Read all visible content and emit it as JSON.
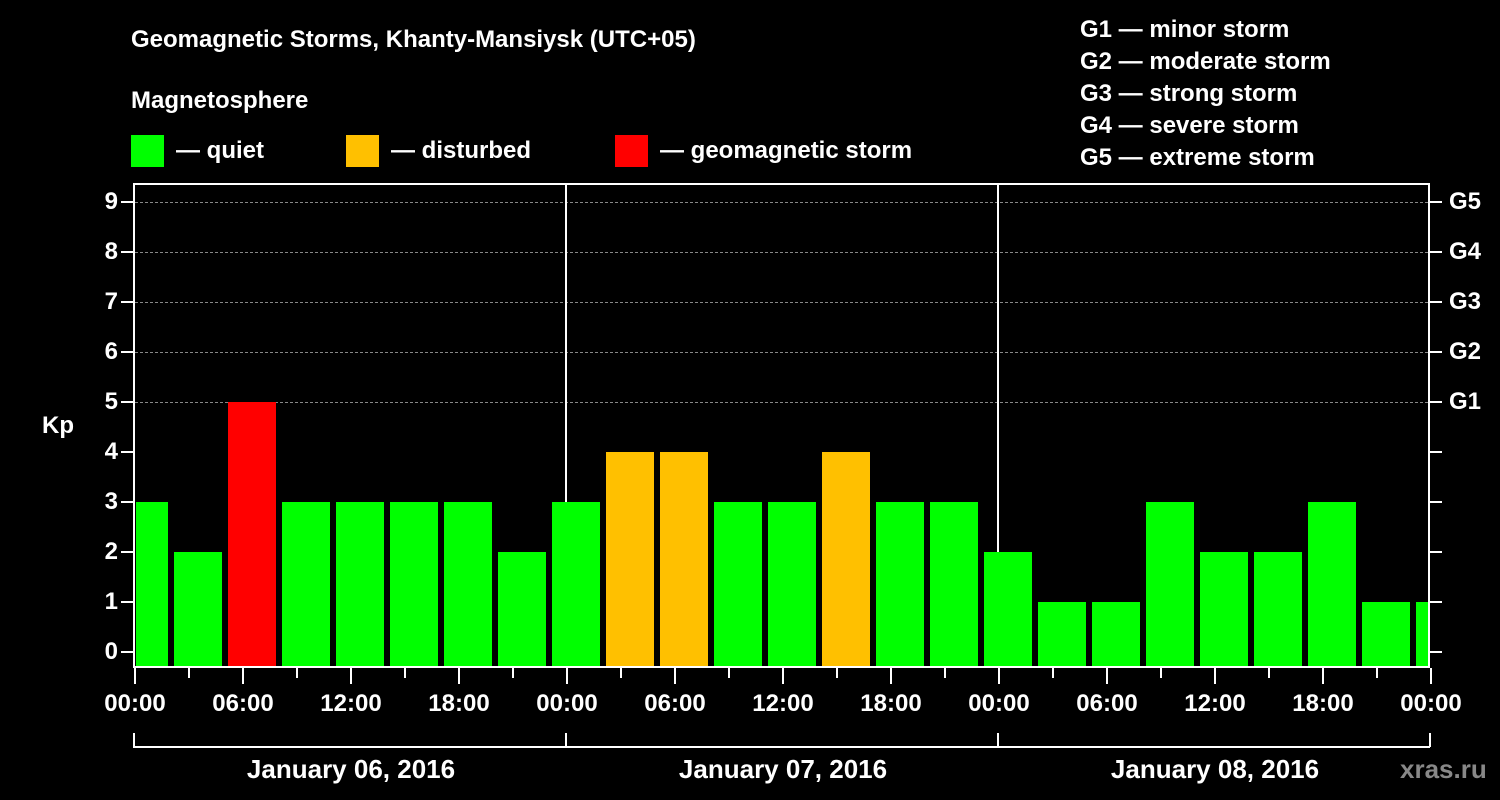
{
  "header": {
    "title": "Geomagnetic Storms, Khanty-Mansiysk (UTC+05)",
    "subtitle": "Magnetosphere"
  },
  "legend": [
    {
      "label": "— quiet",
      "color": "#00ff00"
    },
    {
      "label": "— disturbed",
      "color": "#ffc000"
    },
    {
      "label": "— geomagnetic storm",
      "color": "#ff0000"
    }
  ],
  "g_legend": [
    "G1 — minor storm",
    "G2 — moderate storm",
    "G3 — strong storm",
    "G4 — severe storm",
    "G5 — extreme storm"
  ],
  "axes": {
    "ylabel": "Kp",
    "yticks": [
      "0",
      "1",
      "2",
      "3",
      "4",
      "5",
      "6",
      "7",
      "8",
      "9"
    ],
    "right_ticks": {
      "5": "G1",
      "6": "G2",
      "7": "G3",
      "8": "G4",
      "9": "G5"
    },
    "xticks": [
      "00:00",
      "06:00",
      "12:00",
      "18:00",
      "00:00",
      "06:00",
      "12:00",
      "18:00",
      "00:00",
      "06:00",
      "12:00",
      "18:00",
      "00:00"
    ],
    "days": [
      "January 06, 2016",
      "January 07, 2016",
      "January 08, 2016"
    ]
  },
  "watermark": "xras.ru",
  "colors": {
    "quiet": "#00ff00",
    "disturbed": "#ffc000",
    "storm": "#ff0000",
    "grid": "#888888"
  },
  "chart_data": {
    "type": "bar",
    "title": "Geomagnetic Storms, Khanty-Mansiysk (UTC+05)",
    "xlabel": "",
    "ylabel": "Kp",
    "ylim": [
      0,
      9
    ],
    "grid": "dashed horizontal at Kp 5-9",
    "legend_position": "top",
    "categories": [
      "Jan 06 00:00",
      "Jan 06 02:00",
      "Jan 06 05:00",
      "Jan 06 08:00",
      "Jan 06 11:00",
      "Jan 06 14:00",
      "Jan 06 17:00",
      "Jan 06 20:00",
      "Jan 06 23:00",
      "Jan 07 02:00",
      "Jan 07 05:00",
      "Jan 07 08:00",
      "Jan 07 11:00",
      "Jan 07 14:00",
      "Jan 07 17:00",
      "Jan 07 20:00",
      "Jan 07 23:00",
      "Jan 08 02:00",
      "Jan 08 05:00",
      "Jan 08 08:00",
      "Jan 08 11:00",
      "Jan 08 14:00",
      "Jan 08 17:00",
      "Jan 08 20:00",
      "Jan 08 23:00"
    ],
    "values": [
      3,
      2,
      5,
      3,
      3,
      3,
      3,
      2,
      3,
      4,
      4,
      3,
      3,
      4,
      3,
      3,
      2,
      1,
      1,
      3,
      2,
      2,
      3,
      1,
      1
    ],
    "bar_status": [
      "quiet",
      "quiet",
      "storm",
      "quiet",
      "quiet",
      "quiet",
      "quiet",
      "quiet",
      "quiet",
      "disturbed",
      "disturbed",
      "quiet",
      "quiet",
      "disturbed",
      "quiet",
      "quiet",
      "quiet",
      "quiet",
      "quiet",
      "quiet",
      "quiet",
      "quiet",
      "quiet",
      "quiet",
      "quiet"
    ],
    "series": [
      {
        "name": "Kp index",
        "values": [
          3,
          2,
          5,
          3,
          3,
          3,
          3,
          2,
          3,
          4,
          4,
          3,
          3,
          4,
          3,
          3,
          2,
          1,
          1,
          3,
          2,
          2,
          3,
          1,
          1
        ]
      }
    ]
  }
}
